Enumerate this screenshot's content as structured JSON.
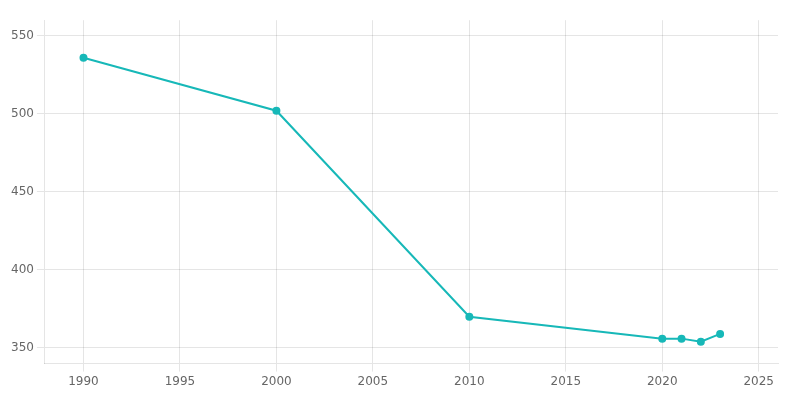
{
  "chart_data": {
    "type": "line",
    "x": [
      1990,
      2000,
      2010,
      2020,
      2021,
      2022,
      2023
    ],
    "values": [
      536,
      502,
      370,
      356,
      356,
      354,
      359
    ],
    "color": "#17b8b8",
    "marker": "o",
    "xlim": [
      1988,
      2026
    ],
    "xticks": [
      1990,
      1995,
      2000,
      2005,
      2010,
      2015,
      2020,
      2025
    ],
    "ylim": [
      340,
      560
    ],
    "yticks": [
      350,
      400,
      450,
      500,
      550
    ],
    "grid": true
  }
}
